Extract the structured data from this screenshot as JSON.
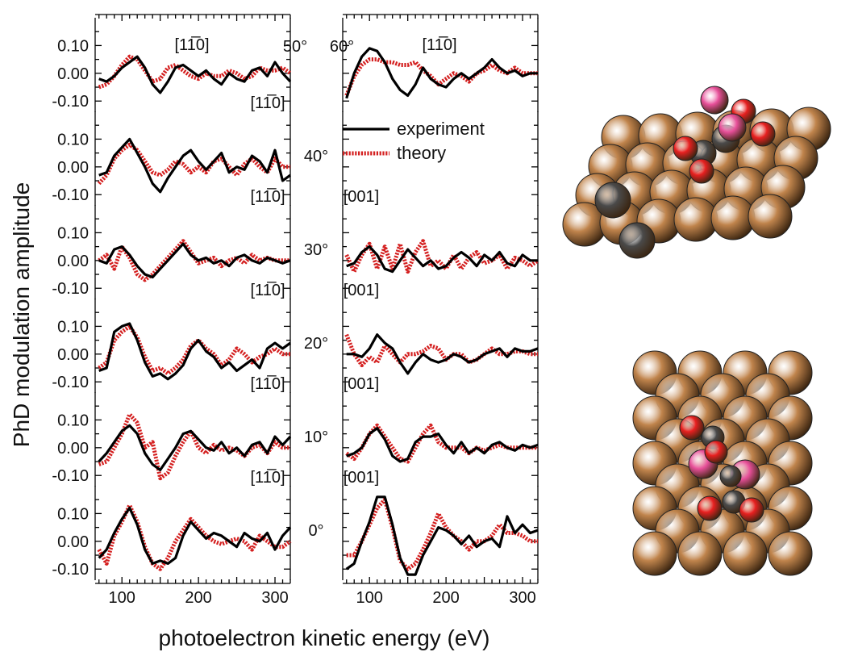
{
  "chart_data": {
    "type": "line",
    "ylabel": "PhD modulation amplitude",
    "xlabel": "photoelectron kinetic energy (eV)",
    "xlim": [
      65,
      320
    ],
    "ylim": [
      -0.14,
      0.2
    ],
    "x_ticks": [
      100,
      200,
      300
    ],
    "x_tick_labels": [
      "100",
      "200",
      "300"
    ],
    "y_ticks": [
      0.1,
      0.0,
      -0.1
    ],
    "y_tick_labels": [
      "0.10",
      "0.00",
      "-0.10"
    ],
    "legend": {
      "items": [
        "experiment",
        "theory"
      ],
      "colors": [
        "#000000",
        "#d42020"
      ]
    },
    "x": [
      70,
      80,
      90,
      100,
      110,
      120,
      130,
      140,
      150,
      160,
      170,
      180,
      190,
      200,
      210,
      220,
      230,
      240,
      250,
      260,
      270,
      280,
      290,
      300,
      310,
      320
    ],
    "rows": [
      {
        "angle": "50°",
        "right_angle": "60°",
        "left": {
          "direction_top": "[11̅0]",
          "direction_bottom": "[11̅0]",
          "series": [
            {
              "name": "experiment",
              "values": [
                -0.02,
                -0.03,
                -0.01,
                0.02,
                0.04,
                0.06,
                0.02,
                -0.04,
                -0.07,
                -0.03,
                0.02,
                0.03,
                0.01,
                -0.01,
                0.01,
                -0.02,
                -0.04,
                0.0,
                -0.02,
                -0.03,
                0.01,
                0.02,
                -0.01,
                0.04,
                0.0,
                -0.03
              ]
            },
            {
              "name": "theory",
              "values": [
                -0.05,
                -0.04,
                -0.01,
                0.03,
                0.06,
                0.05,
                0.01,
                -0.03,
                -0.02,
                0.02,
                0.03,
                0.01,
                -0.01,
                -0.02,
                0.0,
                -0.01,
                -0.01,
                0.01,
                0.0,
                -0.02,
                -0.01,
                0.02,
                0.01,
                0.01,
                0.02,
                0.0
              ]
            }
          ]
        },
        "right": {
          "direction_top": "[11̅0]",
          "direction_bottom": "",
          "series": [
            {
              "name": "experiment",
              "values": [
                -0.09,
                0.0,
                0.06,
                0.09,
                0.08,
                0.04,
                -0.02,
                -0.06,
                -0.08,
                -0.04,
                0.02,
                -0.02,
                -0.04,
                -0.05,
                -0.02,
                0.0,
                -0.02,
                0.0,
                0.02,
                0.05,
                0.02,
                0.0,
                0.01,
                -0.01,
                0.0,
                0.0
              ]
            },
            {
              "name": "theory",
              "values": [
                -0.08,
                -0.01,
                0.03,
                0.05,
                0.05,
                0.04,
                0.04,
                0.03,
                0.03,
                0.04,
                0.01,
                -0.01,
                -0.04,
                -0.02,
                0.0,
                -0.01,
                -0.03,
                0.0,
                0.01,
                0.03,
                0.01,
                0.0,
                0.02,
                0.0,
                0.0,
                0.0
              ]
            }
          ]
        }
      },
      {
        "angle": "40°",
        "right_angle": "",
        "left": {
          "direction_top": "",
          "direction_bottom": "[11̅0]",
          "series": [
            {
              "name": "experiment",
              "values": [
                -0.03,
                -0.02,
                0.04,
                0.07,
                0.1,
                0.05,
                0.0,
                -0.06,
                -0.09,
                -0.04,
                0.0,
                0.04,
                0.06,
                0.02,
                -0.01,
                0.02,
                0.05,
                -0.02,
                0.0,
                -0.01,
                0.04,
                0.02,
                -0.02,
                0.06,
                -0.05,
                -0.03
              ]
            },
            {
              "name": "theory",
              "values": [
                -0.06,
                -0.03,
                0.03,
                0.06,
                0.08,
                0.06,
                0.02,
                -0.02,
                -0.03,
                -0.01,
                0.02,
                0.01,
                -0.02,
                0.0,
                -0.02,
                0.02,
                0.03,
                0.0,
                -0.03,
                0.01,
                0.03,
                0.0,
                -0.02,
                0.03,
                0.0,
                0.0
              ]
            }
          ]
        },
        "right": {
          "direction_top": "",
          "direction_bottom": "[001]",
          "series": []
        }
      },
      {
        "angle": "30°",
        "right_angle": "",
        "left": {
          "direction_top": "",
          "direction_bottom": "[11̅0]",
          "series": [
            {
              "name": "experiment",
              "values": [
                0.0,
                -0.01,
                0.04,
                0.05,
                0.02,
                -0.02,
                -0.05,
                -0.06,
                -0.03,
                0.0,
                0.03,
                0.06,
                0.02,
                0.0,
                0.01,
                -0.01,
                0.0,
                -0.02,
                0.01,
                0.02,
                0.0,
                -0.01,
                0.01,
                0.0,
                -0.01,
                0.0
              ]
            },
            {
              "name": "theory",
              "values": [
                0.0,
                0.02,
                -0.03,
                0.05,
                0.01,
                -0.05,
                -0.07,
                -0.05,
                -0.02,
                0.01,
                0.04,
                0.07,
                0.03,
                -0.01,
                0.0,
                0.01,
                -0.02,
                0.0,
                0.01,
                -0.01,
                0.02,
                0.0,
                0.01,
                0.0,
                0.0,
                0.0
              ]
            }
          ]
        },
        "right": {
          "direction_top": "",
          "direction_bottom": "[001]",
          "series": [
            {
              "name": "experiment",
              "values": [
                -0.02,
                -0.01,
                0.03,
                0.05,
                0.02,
                -0.03,
                -0.04,
                0.0,
                0.04,
                0.01,
                -0.02,
                0.0,
                -0.03,
                -0.02,
                0.01,
                0.03,
                0.01,
                -0.02,
                0.02,
                0.0,
                0.03,
                -0.01,
                -0.02,
                0.02,
                0.0,
                0.0
              ]
            },
            {
              "name": "theory",
              "values": [
                0.02,
                -0.04,
                0.02,
                0.06,
                -0.03,
                0.05,
                -0.03,
                0.06,
                -0.04,
                0.03,
                0.07,
                -0.02,
                0.0,
                -0.03,
                0.02,
                -0.03,
                0.01,
                0.03,
                -0.01,
                0.0,
                0.02,
                -0.03,
                0.01,
                0.0,
                -0.02,
                0.0
              ]
            }
          ]
        }
      },
      {
        "angle": "20°",
        "right_angle": "",
        "left": {
          "direction_top": "",
          "direction_bottom": "[11̅0]",
          "series": [
            {
              "name": "experiment",
              "values": [
                -0.06,
                -0.05,
                0.08,
                0.1,
                0.11,
                0.05,
                -0.03,
                -0.08,
                -0.07,
                -0.09,
                -0.07,
                -0.04,
                0.02,
                0.05,
                0.01,
                -0.01,
                -0.05,
                -0.03,
                -0.06,
                -0.04,
                -0.02,
                -0.05,
                0.02,
                0.04,
                0.02,
                0.04
              ]
            },
            {
              "name": "theory",
              "values": [
                -0.05,
                -0.03,
                0.05,
                0.08,
                0.1,
                0.06,
                -0.01,
                -0.06,
                -0.05,
                -0.07,
                -0.05,
                -0.02,
                0.03,
                0.05,
                0.02,
                0.0,
                -0.04,
                -0.02,
                0.02,
                0.0,
                -0.03,
                -0.01,
                0.0,
                0.02,
                0.0,
                0.0
              ]
            }
          ]
        },
        "right": {
          "direction_top": "",
          "direction_bottom": "[001]",
          "series": [
            {
              "name": "experiment",
              "values": [
                0.0,
                0.0,
                -0.01,
                0.02,
                0.07,
                0.04,
                0.02,
                -0.03,
                -0.07,
                -0.03,
                0.0,
                -0.02,
                -0.03,
                -0.02,
                0.0,
                -0.01,
                -0.03,
                -0.02,
                0.0,
                0.01,
                0.02,
                -0.01,
                0.02,
                0.01,
                0.01,
                0.02
              ]
            },
            {
              "name": "theory",
              "values": [
                0.07,
                0.0,
                -0.04,
                -0.01,
                -0.03,
                0.03,
                0.0,
                -0.03,
                0.0,
                0.0,
                0.01,
                0.03,
                0.02,
                -0.02,
                0.0,
                0.0,
                -0.03,
                -0.02,
                0.0,
                0.02,
                0.0,
                0.0,
                0.01,
                0.01,
                0.0,
                0.0
              ]
            }
          ]
        }
      },
      {
        "angle": "10°",
        "right_angle": "",
        "left": {
          "direction_top": "",
          "direction_bottom": "[11̅0]",
          "series": [
            {
              "name": "experiment",
              "values": [
                -0.05,
                -0.02,
                0.02,
                0.06,
                0.08,
                0.05,
                -0.02,
                -0.06,
                -0.08,
                -0.04,
                0.0,
                0.05,
                0.06,
                0.03,
                0.0,
                -0.01,
                0.02,
                -0.02,
                0.0,
                -0.03,
                0.01,
                0.02,
                -0.02,
                0.04,
                0.01,
                0.04
              ]
            },
            {
              "name": "theory",
              "values": [
                -0.06,
                -0.05,
                0.0,
                0.05,
                0.12,
                0.09,
                0.0,
                0.02,
                -0.11,
                -0.09,
                -0.03,
                0.02,
                0.06,
                0.0,
                -0.02,
                0.01,
                -0.01,
                0.0,
                -0.01,
                -0.03,
                0.0,
                0.01,
                -0.02,
                0.02,
                0.0,
                0.0
              ]
            }
          ]
        },
        "right": {
          "direction_top": "",
          "direction_bottom": "[001]",
          "series": [
            {
              "name": "experiment",
              "values": [
                -0.03,
                -0.02,
                0.0,
                0.05,
                0.07,
                0.03,
                -0.03,
                -0.05,
                -0.04,
                0.02,
                0.04,
                0.04,
                0.05,
                0.01,
                -0.02,
                0.02,
                -0.02,
                0.0,
                -0.02,
                0.01,
                0.02,
                0.0,
                -0.01,
                0.01,
                0.0,
                0.01
              ]
            },
            {
              "name": "theory",
              "values": [
                -0.02,
                -0.04,
                0.0,
                0.05,
                0.08,
                0.04,
                0.0,
                -0.04,
                -0.05,
                0.0,
                0.05,
                0.08,
                0.02,
                0.0,
                0.0,
                0.0,
                -0.02,
                0.0,
                -0.01,
                0.0,
                0.01,
                0.0,
                0.0,
                0.0,
                0.0,
                0.0
              ]
            }
          ]
        }
      },
      {
        "angle": "0°",
        "right_angle": "",
        "left": {
          "direction_top": "",
          "direction_bottom": "",
          "series": [
            {
              "name": "experiment",
              "values": [
                -0.06,
                -0.03,
                0.03,
                0.08,
                0.12,
                0.06,
                -0.03,
                -0.08,
                -0.07,
                -0.08,
                -0.06,
                0.02,
                0.07,
                0.04,
                0.01,
                0.03,
                0.02,
                0.0,
                -0.02,
                0.03,
                0.01,
                0.0,
                0.03,
                -0.03,
                0.02,
                0.05
              ]
            },
            {
              "name": "theory",
              "values": [
                -0.03,
                -0.08,
                0.02,
                0.07,
                0.13,
                0.07,
                -0.02,
                -0.08,
                -0.1,
                -0.06,
                0.0,
                0.04,
                0.08,
                0.05,
                0.02,
                0.0,
                -0.01,
                0.0,
                0.01,
                0.0,
                -0.03,
                0.02,
                0.0,
                -0.02,
                -0.02,
                0.0
              ]
            }
          ]
        },
        "right": {
          "direction_top": "",
          "direction_bottom": "",
          "series": [
            {
              "name": "experiment",
              "values": [
                -0.1,
                -0.08,
                0.0,
                0.07,
                0.16,
                0.16,
                0.06,
                -0.06,
                -0.12,
                -0.12,
                -0.05,
                0.0,
                0.05,
                0.04,
                0.02,
                -0.01,
                0.02,
                -0.02,
                0.0,
                0.01,
                -0.02,
                0.09,
                0.03,
                0.06,
                0.03,
                0.04
              ]
            },
            {
              "name": "theory",
              "values": [
                -0.05,
                -0.05,
                0.0,
                0.06,
                0.12,
                0.15,
                0.05,
                -0.07,
                -0.1,
                -0.08,
                -0.03,
                0.03,
                0.1,
                0.05,
                0.02,
                0.0,
                -0.03,
                0.0,
                0.0,
                0.02,
                0.06,
                0.03,
                0.03,
                0.02,
                0.0,
                0.0
              ]
            }
          ]
        }
      }
    ]
  },
  "colors": {
    "experiment": "#000000",
    "theory": "#d42020",
    "copper": "#c0844c",
    "oxygen": "#e82020",
    "carbon": "#4a4a4a",
    "hydrogen_pink": "#e8509a"
  },
  "models": {
    "top": {
      "description_icon": "molecule-on-surface-perspective-icon"
    },
    "bottom": {
      "description_icon": "molecule-on-surface-top-view-icon"
    }
  }
}
